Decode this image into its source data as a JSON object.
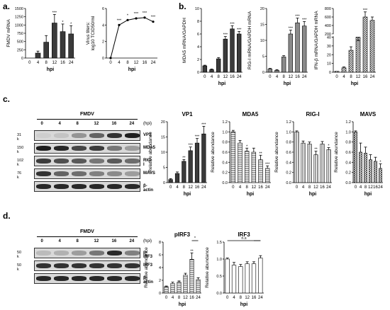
{
  "panels": {
    "a": "a.",
    "b": "b.",
    "c": "c.",
    "d": "d."
  },
  "colors": {
    "dark_bar": "#3a3a3a",
    "light_bar": "#ffffff",
    "mid_bar": "#777777",
    "blot_bg": "#d9d9d9",
    "band": "#222222"
  },
  "chart_data": [
    {
      "id": "a1",
      "type": "bar",
      "title": "",
      "xlabel": "hpi",
      "ylabel": "FMDV mRNA",
      "categories": [
        "0",
        "4",
        "8",
        "12",
        "16",
        "24"
      ],
      "values": [
        0,
        150,
        480,
        1060,
        800,
        730
      ],
      "errors": [
        0,
        60,
        200,
        260,
        230,
        250
      ],
      "sig": [
        "",
        "",
        "",
        "***",
        "*",
        "*"
      ],
      "ylim": [
        0,
        1500
      ],
      "yticks": [
        "0",
        "250",
        "500",
        "750",
        "1000",
        "1250",
        "1500"
      ],
      "fill": "dark"
    },
    {
      "id": "a2",
      "type": "line",
      "title": "",
      "xlabel": "hpi",
      "ylabel_lines": [
        "Virus titers:",
        "log10 TCID50/ml"
      ],
      "categories": [
        "0",
        "4",
        "8",
        "12",
        "16",
        "24"
      ],
      "values": [
        0,
        4.0,
        4.6,
        4.8,
        4.9,
        4.4
      ],
      "sig": [
        "",
        "***",
        "*",
        "***",
        "***",
        "***"
      ],
      "ylim": [
        0,
        6
      ],
      "yticks": [
        "0",
        "2",
        "4",
        "6"
      ]
    },
    {
      "id": "b1",
      "type": "bar",
      "title": "",
      "xlabel": "hpi",
      "ylabel": "MDA5 mRNA/GAPDH",
      "categories": [
        "0",
        "4",
        "8",
        "12",
        "16",
        "24"
      ],
      "values": [
        1.0,
        0.4,
        2.1,
        5.2,
        6.8,
        6.0
      ],
      "errors": [
        0.1,
        0.1,
        0.2,
        0.4,
        0.5,
        0.4
      ],
      "sig": [
        "",
        "",
        "",
        "***",
        "***",
        "***"
      ],
      "ylim": [
        0,
        10
      ],
      "yticks": [
        "0",
        "2",
        "4",
        "6",
        "8",
        "10"
      ],
      "fill": "dark"
    },
    {
      "id": "b2",
      "type": "bar",
      "title": "",
      "xlabel": "hpi",
      "ylabel": "RIG-I mRNA/GAPDH mRNA",
      "categories": [
        "0",
        "4",
        "8",
        "12",
        "16",
        "24"
      ],
      "values": [
        1.0,
        0.6,
        4.8,
        12.0,
        15.5,
        14.5
      ],
      "errors": [
        0.2,
        0.2,
        0.4,
        1.2,
        1.5,
        1.4
      ],
      "sig": [
        "",
        "",
        "",
        "***",
        "***",
        "***"
      ],
      "ylim": [
        0,
        20
      ],
      "yticks": [
        "0",
        "5",
        "10",
        "15",
        "20"
      ],
      "fill": "mid"
    },
    {
      "id": "b3",
      "type": "bar",
      "title": "",
      "xlabel": "hpi",
      "ylabel": "IFN-β mRNA/GAPDH mRNA",
      "categories": [
        "0",
        "4",
        "8",
        "12",
        "16",
        "24"
      ],
      "values": [
        1,
        5,
        25,
        40,
        600,
        520
      ],
      "errors": [
        0,
        1,
        4,
        6,
        120,
        80
      ],
      "sig": [
        "",
        "",
        "",
        "",
        "***",
        ""
      ],
      "ytick_labels": [
        "0",
        "10",
        "20",
        "30",
        "40",
        "200",
        "400",
        "600",
        "800"
      ],
      "fill": "check"
    },
    {
      "id": "c1",
      "type": "bar",
      "title": "VP1",
      "xlabel": "hpi",
      "ylabel": "Relative abundance",
      "categories": [
        "0",
        "4",
        "8",
        "12",
        "16",
        "24"
      ],
      "values": [
        1,
        3,
        7,
        10.5,
        13,
        16
      ],
      "errors": [
        0.3,
        0.5,
        0.6,
        1.2,
        1.5,
        2.5
      ],
      "sig": [
        "",
        "",
        "**",
        "***",
        "***",
        "***"
      ],
      "ylim": [
        0,
        20
      ],
      "yticks": [
        "0",
        "5",
        "10",
        "15",
        "20"
      ],
      "fill": "dark"
    },
    {
      "id": "c2",
      "type": "bar",
      "title": "MDA5",
      "xlabel": "hpi",
      "ylabel": "Relative abundance",
      "categories": [
        "0",
        "4",
        "8",
        "12",
        "16",
        "24"
      ],
      "values": [
        1.0,
        0.78,
        0.62,
        0.6,
        0.45,
        0.28
      ],
      "errors": [
        0.03,
        0.05,
        0.06,
        0.08,
        0.09,
        0.05
      ],
      "sig": [
        "",
        "",
        "*",
        "",
        "**",
        "***"
      ],
      "ylim": [
        0,
        1.2
      ],
      "yticks": [
        "0.0",
        "0.2",
        "0.4",
        "0.6",
        "0.8",
        "1.0",
        "1.2"
      ],
      "fill": "hstripe"
    },
    {
      "id": "c3",
      "type": "bar",
      "title": "RIG-I",
      "xlabel": "hpi",
      "ylabel": "Relative abundance",
      "categories": [
        "0",
        "4",
        "8",
        "12",
        "16",
        "24"
      ],
      "values": [
        1.0,
        0.78,
        0.76,
        0.55,
        0.76,
        0.65
      ],
      "errors": [
        0.02,
        0.04,
        0.04,
        0.07,
        0.05,
        0.04
      ],
      "sig": [
        "",
        "",
        "",
        "**",
        "",
        "*"
      ],
      "ylim": [
        0,
        1.2
      ],
      "yticks": [
        "0.0",
        "0.2",
        "0.4",
        "0.6",
        "0.8",
        "1.0",
        "1.2"
      ],
      "fill": "vstripe"
    },
    {
      "id": "c4",
      "type": "bar",
      "title": "MAVS",
      "xlabel": "hpi",
      "ylabel": "Relative abundance",
      "categories": [
        "0",
        "4",
        "8",
        "12",
        "16",
        "24"
      ],
      "values": [
        1.0,
        0.6,
        0.58,
        0.45,
        0.42,
        0.28
      ],
      "errors": [
        0.02,
        0.18,
        0.12,
        0.1,
        0.08,
        0.09
      ],
      "sig": [
        "",
        "",
        "",
        "",
        "",
        "*"
      ],
      "ylim": [
        0,
        1.2
      ],
      "yticks": [
        "0.0",
        "0.2",
        "0.4",
        "0.6",
        "0.8",
        "1.0",
        "1.2"
      ],
      "fill": "check"
    },
    {
      "id": "d1",
      "type": "bar",
      "title": "pIRF3",
      "xlabel": "hpi",
      "ylabel": "Relative abundance",
      "categories": [
        "0",
        "4",
        "8",
        "12",
        "16",
        "24"
      ],
      "values": [
        1.0,
        1.5,
        1.7,
        2.8,
        5.3,
        2.1
      ],
      "errors": [
        0.1,
        0.2,
        0.2,
        0.3,
        1.0,
        0.3
      ],
      "sig": [
        "",
        "",
        "",
        "",
        "**",
        ""
      ],
      "bracket": "*",
      "ylim": [
        0,
        8
      ],
      "yticks": [
        "0",
        "2",
        "4",
        "6",
        "8"
      ],
      "fill": "hstripe"
    },
    {
      "id": "d2",
      "type": "bar",
      "title": "IRF3",
      "xlabel": "hpi",
      "ylabel": "Relative abundance",
      "categories": [
        "0",
        "4",
        "8",
        "12",
        "16",
        "24"
      ],
      "values": [
        1.0,
        0.82,
        0.78,
        0.86,
        0.86,
        1.03
      ],
      "errors": [
        0.03,
        0.08,
        0.06,
        0.06,
        0.06,
        0.07
      ],
      "sig": [
        "",
        "",
        "",
        "",
        "",
        ""
      ],
      "bracket": "n.s",
      "ylim": [
        0,
        1.5
      ],
      "yticks": [
        "0.0",
        "0.5",
        "1.0",
        "1.5"
      ],
      "fill": "white"
    }
  ],
  "blot_c": {
    "header": "FMDV",
    "lanes": [
      "0",
      "4",
      "8",
      "12",
      "16",
      "24"
    ],
    "unit": "(hpi)",
    "rows": [
      {
        "label": "VP1",
        "kd": "31 k",
        "intensity": [
          0.05,
          0.1,
          0.35,
          0.6,
          0.85,
          0.95
        ]
      },
      {
        "label": "MDA5",
        "kd": "150 k",
        "intensity": [
          0.95,
          0.9,
          0.75,
          0.8,
          0.5,
          0.3
        ]
      },
      {
        "label": "RIG-I",
        "kd": "102 k",
        "intensity": [
          0.8,
          0.7,
          0.65,
          0.5,
          0.65,
          0.55
        ]
      },
      {
        "label": "MAVS",
        "kd": "76 k",
        "intensity": [
          0.85,
          0.6,
          0.55,
          0.45,
          0.4,
          0.3
        ]
      },
      {
        "label": "β-actin",
        "kd": "",
        "intensity": [
          0.9,
          0.9,
          0.9,
          0.9,
          0.9,
          0.9
        ]
      }
    ],
    "extra_kd": [
      "102 k",
      "102 k"
    ]
  },
  "blot_d": {
    "header": "FMDV",
    "lanes": [
      "0",
      "4",
      "8",
      "12",
      "16",
      "24"
    ],
    "unit": "(hpi)",
    "rows": [
      {
        "label": "p-IRF3",
        "kd": "50 k",
        "intensity": [
          0.15,
          0.2,
          0.3,
          0.5,
          0.9,
          0.45
        ]
      },
      {
        "label": "IRF3",
        "kd": "50 k",
        "intensity": [
          0.85,
          0.85,
          0.85,
          0.85,
          0.85,
          0.85
        ]
      },
      {
        "label": "β-actin",
        "kd": "",
        "intensity": [
          0.9,
          0.9,
          0.9,
          0.9,
          0.9,
          0.9
        ]
      }
    ]
  }
}
